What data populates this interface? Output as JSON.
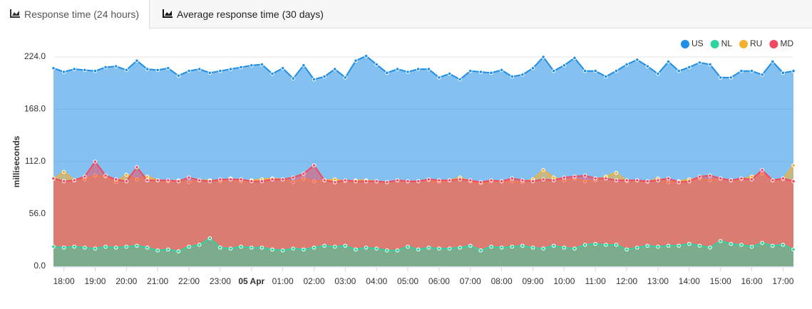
{
  "tabs": [
    "Response time (24 hours)",
    "Average response time (30 days)"
  ],
  "chart_data": {
    "type": "area",
    "y_label": "milliseconds",
    "categories": [
      null,
      "18:00",
      null,
      null,
      "19:00",
      null,
      null,
      "20:00",
      null,
      null,
      "21:00",
      null,
      null,
      "22:00",
      null,
      null,
      "23:00",
      null,
      null,
      "05 Apr",
      null,
      null,
      "01:00",
      null,
      null,
      "02:00",
      null,
      null,
      "03:00",
      null,
      null,
      "04:00",
      null,
      null,
      "05:00",
      null,
      null,
      "06:00",
      null,
      null,
      "07:00",
      null,
      null,
      "08:00",
      null,
      null,
      "09:00",
      null,
      null,
      "10:00",
      null,
      null,
      "11:00",
      null,
      null,
      "12:00",
      null,
      null,
      "13:00",
      null,
      null,
      "14:00",
      null,
      null,
      "15:00",
      null,
      null,
      "16:00",
      null,
      null,
      "17:00",
      null
    ],
    "ylim": [
      0,
      224
    ],
    "yticks": [
      {
        "value": 0,
        "label": "0.0"
      },
      {
        "value": 56,
        "label": "56.0"
      },
      {
        "value": 112,
        "label": "112.0"
      },
      {
        "value": 168,
        "label": "168.0"
      },
      {
        "value": 224,
        "label": "224.0"
      }
    ],
    "grid": true,
    "legend": "top-right",
    "series": [
      {
        "name": "US",
        "color": "#1f8ee6",
        "values": [
          212,
          208,
          211,
          210,
          209,
          213,
          214,
          210,
          220,
          211,
          210,
          212,
          204,
          209,
          211,
          207,
          209,
          211,
          213,
          215,
          216,
          206,
          212,
          201,
          215,
          200,
          203,
          211,
          202,
          220,
          225,
          216,
          207,
          211,
          208,
          211,
          211,
          202,
          206,
          200,
          209,
          208,
          207,
          210,
          203,
          205,
          212,
          224,
          209,
          215,
          223,
          209,
          209,
          203,
          209,
          216,
          221,
          214,
          206,
          219,
          209,
          213,
          218,
          216,
          202,
          202,
          209,
          209,
          205,
          219,
          207,
          209
        ]
      },
      {
        "name": "NL",
        "color": "#2ed3a0",
        "values": [
          21,
          20,
          21,
          20,
          19,
          21,
          20,
          21,
          22,
          20,
          17,
          18,
          16,
          21,
          23,
          30,
          20,
          19,
          21,
          20,
          20,
          18,
          17,
          19,
          18,
          20,
          22,
          21,
          22,
          18,
          20,
          19,
          17,
          17,
          21,
          18,
          20,
          19,
          19,
          20,
          22,
          17,
          21,
          20,
          21,
          22,
          20,
          19,
          22,
          20,
          19,
          23,
          24,
          23,
          23,
          18,
          20,
          22,
          21,
          22,
          22,
          24,
          22,
          20,
          27,
          24,
          23,
          21,
          25,
          22,
          23,
          18
        ]
      },
      {
        "name": "RU",
        "color": "#f5b031",
        "values": [
          93,
          101,
          92,
          93,
          97,
          96,
          90,
          98,
          93,
          96,
          92,
          91,
          92,
          90,
          92,
          92,
          91,
          94,
          91,
          92,
          93,
          94,
          93,
          90,
          94,
          91,
          92,
          93,
          91,
          92,
          92,
          91,
          90,
          92,
          91,
          91,
          92,
          90,
          92,
          95,
          91,
          89,
          91,
          91,
          91,
          90,
          93,
          103,
          95,
          92,
          94,
          91,
          92,
          96,
          100,
          91,
          92,
          90,
          94,
          90,
          91,
          93,
          94,
          92,
          94,
          92,
          93,
          96,
          99,
          92,
          93,
          108
        ]
      },
      {
        "name": "MD",
        "color": "#f04a60",
        "values": [
          94,
          91,
          92,
          96,
          112,
          97,
          93,
          91,
          106,
          92,
          92,
          92,
          91,
          95,
          92,
          91,
          93,
          93,
          93,
          91,
          91,
          93,
          93,
          95,
          99,
          108,
          92,
          90,
          92,
          91,
          91,
          91,
          90,
          92,
          91,
          91,
          93,
          92,
          92,
          93,
          92,
          90,
          92,
          91,
          94,
          92,
          91,
          93,
          92,
          95,
          96,
          97,
          94,
          94,
          92,
          92,
          92,
          91,
          92,
          94,
          90,
          91,
          96,
          97,
          94,
          92,
          94,
          93,
          103,
          92,
          94,
          91
        ]
      }
    ]
  }
}
